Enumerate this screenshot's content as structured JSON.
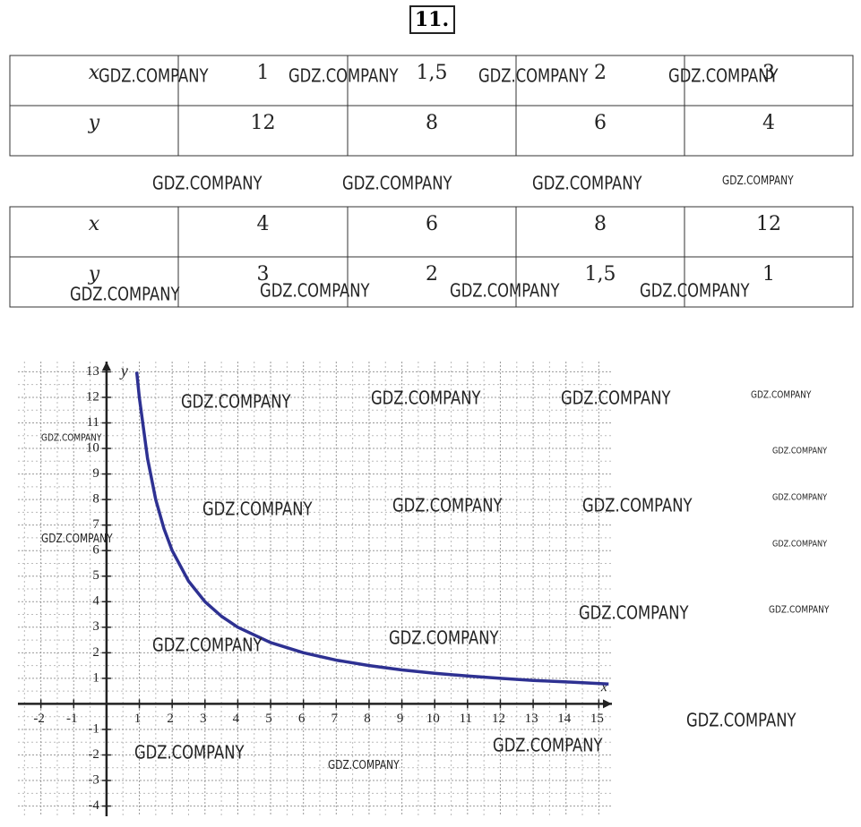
{
  "title": "11.",
  "watermark": "GDZ.COMPANY",
  "tables": [
    {
      "rows": [
        [
          "x",
          "1",
          "1,5",
          "2",
          "3"
        ],
        [
          "y",
          "12",
          "8",
          "6",
          "4"
        ]
      ]
    },
    {
      "rows": [
        [
          "x",
          "4",
          "6",
          "8",
          "12"
        ],
        [
          "y",
          "3",
          "2",
          "1,5",
          "1"
        ]
      ]
    }
  ],
  "chart_data": {
    "type": "line",
    "x_label": "x",
    "y_label": "y",
    "color": "#2e3192",
    "x": [
      0.92,
      1,
      1.25,
      1.5,
      1.75,
      2,
      2.5,
      3,
      3.5,
      4,
      5,
      6,
      7,
      8,
      9,
      10,
      11,
      12,
      13,
      14,
      15.3
    ],
    "values": [
      13,
      12,
      9.6,
      8,
      6.86,
      6,
      4.8,
      4,
      3.43,
      3,
      2.4,
      2,
      1.71,
      1.5,
      1.33,
      1.2,
      1.09,
      1,
      0.92,
      0.86,
      0.78
    ],
    "xlim": [
      -2.7,
      15.4
    ],
    "ylim": [
      -4.4,
      13.4
    ],
    "xticks": [
      -2,
      -1,
      1,
      2,
      3,
      4,
      5,
      6,
      7,
      8,
      9,
      10,
      11,
      12,
      13,
      14,
      15
    ],
    "yticks": [
      -4,
      -3,
      -2,
      -1,
      1,
      2,
      3,
      4,
      5,
      6,
      7,
      8,
      9,
      10,
      11,
      12,
      13
    ],
    "grid": true
  }
}
